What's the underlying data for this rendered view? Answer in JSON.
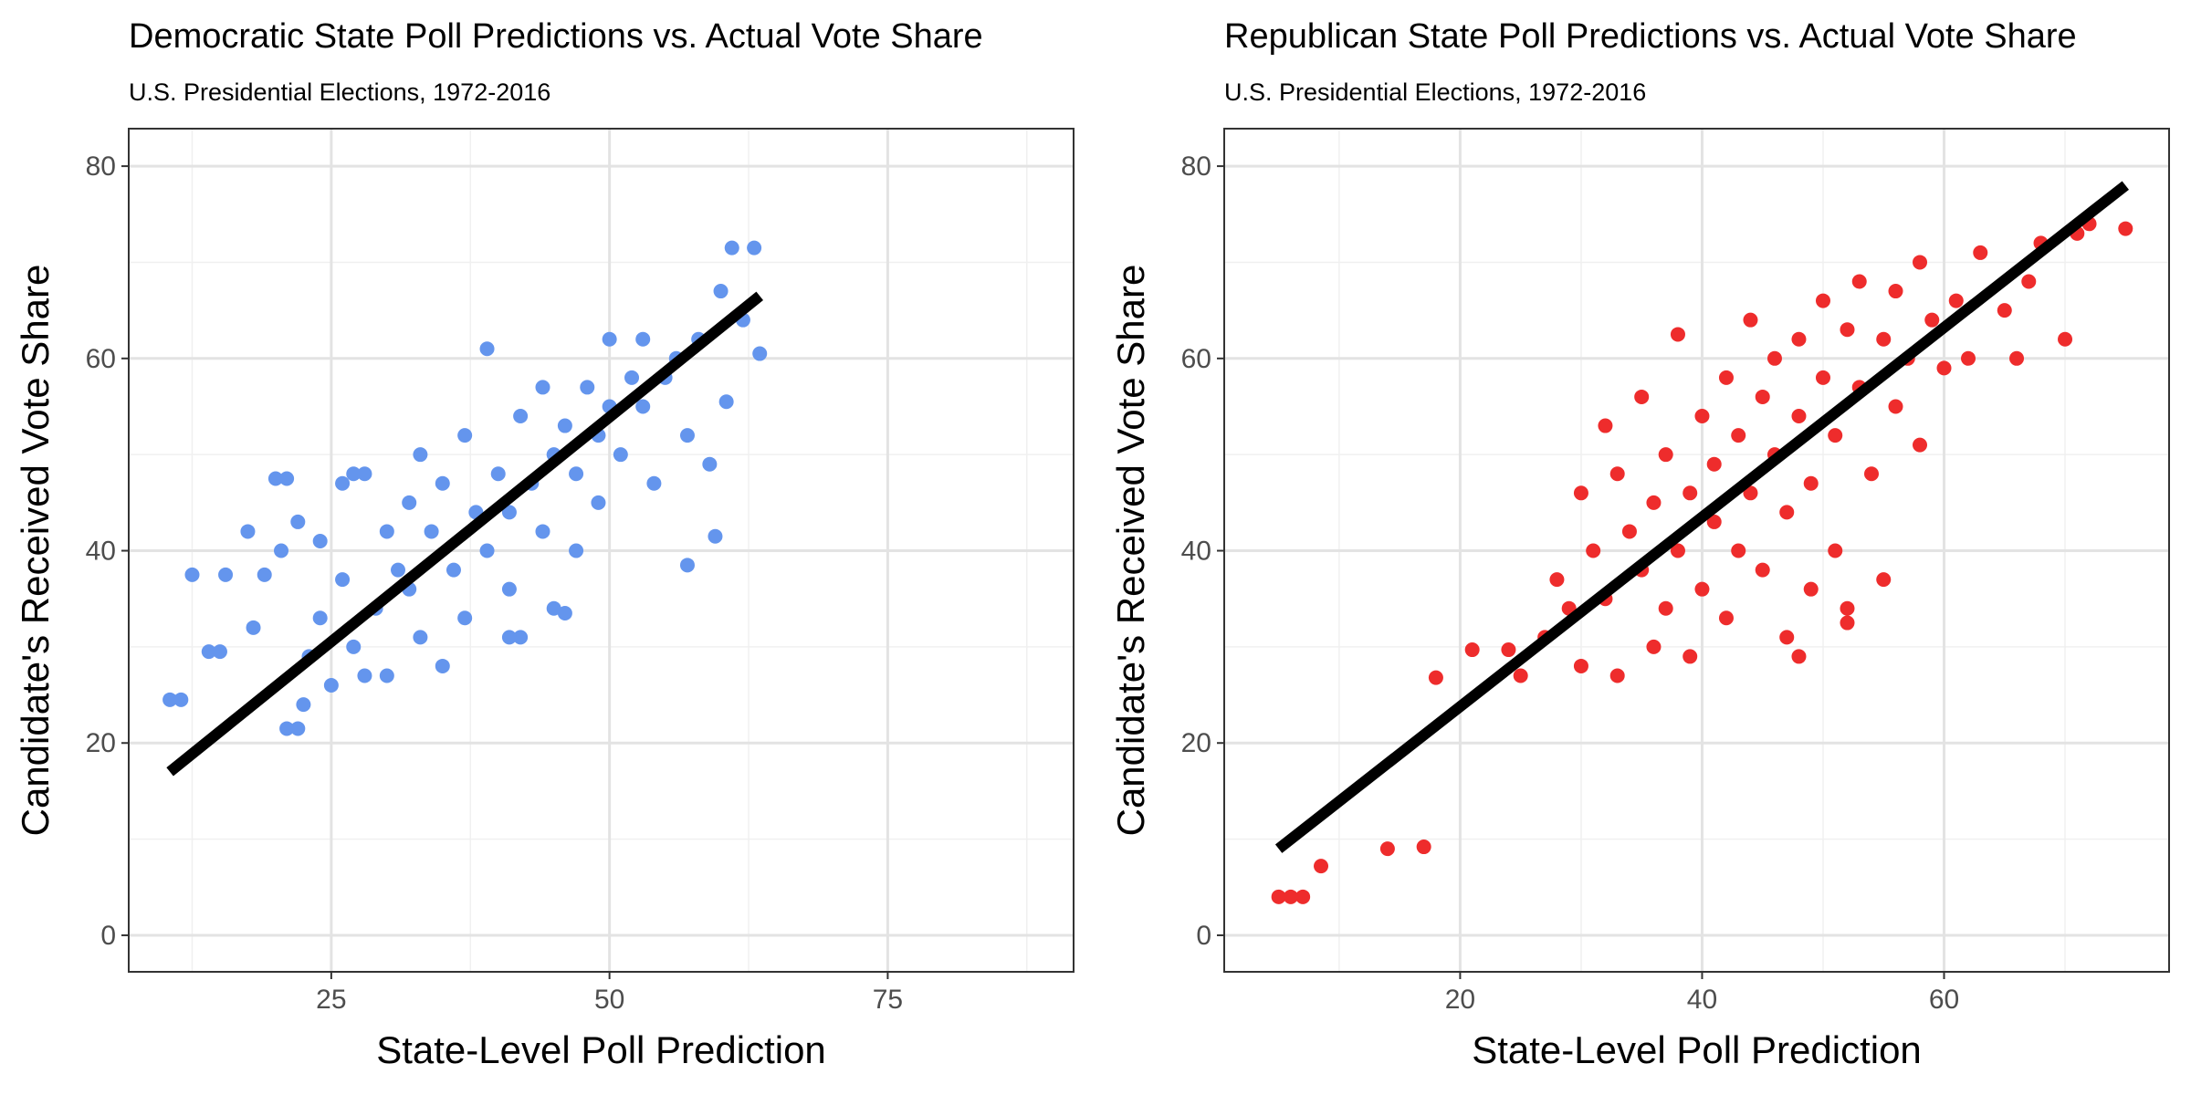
{
  "chart_data": [
    {
      "type": "scatter",
      "title": "Democratic State Poll Predictions vs. Actual Vote Share",
      "subtitle": "U.S. Presidential Elections, 1972-2016",
      "x_label": "State-Level Poll Prediction",
      "y_label": "Candidate's Received Vote Share",
      "xlim": [
        6.8,
        91.7
      ],
      "ylim": [
        -3.8,
        83.9
      ],
      "xticks": [
        25,
        50,
        75
      ],
      "yticks": [
        0,
        20,
        40,
        60,
        80
      ],
      "xminor": [
        12.5,
        37.5,
        62.5,
        87.5
      ],
      "yminor": [
        10,
        30,
        50,
        70
      ],
      "grid": true,
      "points": {
        "color": "#6495ed",
        "x": [
          10.5,
          11.5,
          12.5,
          14,
          15,
          15.5,
          17.5,
          18,
          19,
          20,
          21,
          20.5,
          21,
          22,
          22.5,
          23,
          22,
          24,
          24,
          25,
          26,
          27,
          28,
          26,
          27,
          28,
          29,
          30,
          30,
          31,
          32,
          32,
          33,
          33,
          34,
          35,
          35,
          36,
          37,
          37,
          38,
          39,
          39,
          40,
          41,
          41,
          42,
          42,
          43,
          44,
          44,
          45,
          45,
          46,
          47,
          47,
          48,
          49,
          49,
          50,
          50,
          51,
          52,
          53,
          53,
          54,
          55,
          56,
          57,
          57,
          58,
          59,
          59.5,
          60,
          61,
          62,
          63,
          63.5,
          60.5,
          46,
          41
        ],
        "y": [
          24.5,
          24.5,
          37.5,
          29.5,
          29.5,
          37.5,
          42,
          32,
          37.5,
          47.5,
          47.5,
          40,
          21.5,
          21.5,
          24,
          29,
          43,
          41,
          33,
          26,
          47,
          48,
          48,
          37,
          30,
          27,
          34,
          42,
          27,
          38,
          45,
          36,
          31,
          50,
          42,
          28,
          47,
          38,
          33,
          52,
          44,
          40,
          61,
          48,
          44,
          36,
          54,
          31,
          47,
          42,
          57,
          50,
          34,
          53,
          48,
          40,
          57,
          52,
          45,
          55,
          62,
          50,
          58,
          55,
          62,
          47,
          58,
          60,
          38.5,
          52,
          62,
          49,
          41.5,
          67,
          71.5,
          64,
          71.5,
          60.5,
          55.5,
          33.5,
          31
        ]
      },
      "fit_line": {
        "color": "#000000",
        "x": [
          10.5,
          63.5
        ],
        "y": [
          17,
          66.5
        ]
      }
    },
    {
      "type": "scatter",
      "title": "Republican State Poll Predictions vs. Actual Vote Share",
      "subtitle": "U.S. Presidential Elections, 1972-2016",
      "x_label": "State-Level Poll Prediction",
      "y_label": "Candidate's Received Vote Share",
      "xlim": [
        0.5,
        78.6
      ],
      "ylim": [
        -3.8,
        83.9
      ],
      "xticks": [
        20,
        40,
        60
      ],
      "yticks": [
        0,
        20,
        40,
        60,
        80
      ],
      "xminor": [
        10,
        30,
        50,
        70
      ],
      "yminor": [
        10,
        30,
        50,
        70
      ],
      "grid": true,
      "points": {
        "color": "#ee2c2c",
        "x": [
          5,
          6,
          7,
          8.5,
          14,
          17,
          18,
          21,
          24,
          25,
          27,
          28,
          29,
          30,
          30,
          31,
          32,
          32,
          33,
          33,
          34,
          35,
          35,
          36,
          36,
          37,
          37,
          38,
          38,
          39,
          39,
          40,
          40,
          41,
          41,
          42,
          42,
          43,
          43,
          44,
          44,
          45,
          45,
          46,
          46,
          47,
          47,
          48,
          48,
          49,
          49,
          50,
          50,
          51,
          51,
          52,
          52,
          53,
          53,
          54,
          55,
          55,
          56,
          56,
          57,
          58,
          58,
          59,
          60,
          61,
          62,
          63,
          65,
          66,
          67,
          68,
          70,
          71,
          72,
          75,
          52,
          48
        ],
        "y": [
          4,
          4,
          4,
          7.2,
          9,
          9.2,
          26.8,
          29.7,
          29.7,
          27,
          31,
          37,
          34,
          46,
          28,
          40,
          53,
          35,
          48,
          27,
          42,
          38,
          56,
          45,
          30,
          50,
          34,
          62.5,
          40,
          46,
          29,
          54,
          36,
          49,
          43,
          58,
          33,
          52,
          40,
          64,
          46,
          56,
          38,
          60,
          50,
          44,
          31,
          62,
          54,
          47,
          36,
          66,
          58,
          52,
          40,
          63,
          34,
          57,
          68,
          48,
          62,
          37,
          55,
          67,
          60,
          70,
          51,
          64,
          59,
          66,
          60,
          71,
          65,
          60,
          68,
          72,
          62,
          73,
          74,
          73.5,
          32.5,
          29
        ]
      },
      "fit_line": {
        "color": "#000000",
        "x": [
          5,
          75
        ],
        "y": [
          9,
          78
        ]
      }
    }
  ]
}
